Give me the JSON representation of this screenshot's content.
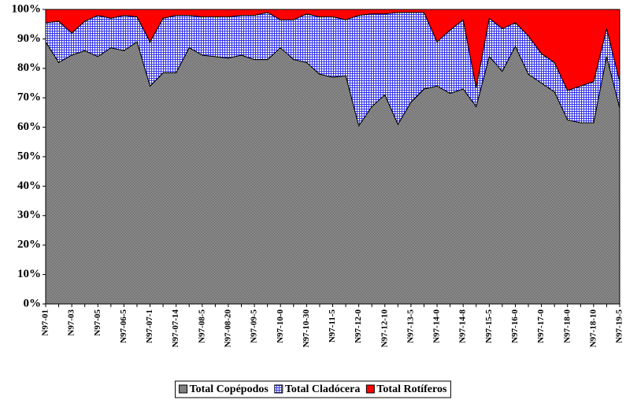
{
  "chart_data": {
    "type": "stacked_area",
    "categories": [
      "N97-01",
      null,
      "N97-03",
      null,
      "N97-05",
      null,
      "N97-06-5",
      null,
      "N97-07-1",
      null,
      "N97-07-14",
      null,
      "N97-08-5",
      null,
      "N97-08-20",
      null,
      "N97-09-5",
      null,
      "N97-10-0",
      null,
      "N97-10-30",
      null,
      "N97-11-5",
      null,
      "N97-12-0",
      null,
      "N97-12-10",
      null,
      "N97-13-5",
      null,
      "N97-14-0",
      null,
      "N97-14-8",
      null,
      "N97-15-5",
      null,
      "N97-16-0",
      null,
      "N97-17-0",
      null,
      "N97-18-0",
      null,
      "N97-18-10",
      null,
      "N97-19-5"
    ],
    "series": [
      {
        "name": "Total Copépodos",
        "color": "#808080",
        "values": [
          89,
          82,
          84.5,
          86,
          84,
          87,
          86,
          89,
          74,
          78.5,
          78.5,
          87,
          84.5,
          84,
          83.5,
          84.5,
          83,
          83,
          87,
          83,
          82,
          78,
          77,
          77.5,
          60.5,
          67,
          71,
          61,
          68.5,
          73,
          74,
          71.5,
          73,
          67,
          84,
          79,
          87.5,
          78,
          75,
          72,
          62.5,
          61.5,
          61.5,
          84,
          66.5
        ]
      },
      {
        "name": "Total Cladócera",
        "color": "#5555ff",
        "values": [
          6.5,
          14,
          7.5,
          10,
          14,
          10,
          12,
          8.5,
          15,
          18.5,
          19.5,
          11,
          13,
          13.5,
          14,
          13.5,
          15,
          16,
          9.5,
          13.5,
          16.5,
          19.5,
          20.5,
          19,
          37.5,
          31.5,
          27.5,
          38,
          30.5,
          26,
          15,
          21.5,
          23.5,
          6.5,
          13,
          14.5,
          8,
          13,
          10,
          10,
          10,
          12.5,
          14,
          9.5,
          9
        ]
      },
      {
        "name": "Total Rotíferos",
        "color": "#ff0000",
        "values": [
          4.5,
          4,
          8,
          4,
          2,
          3,
          2,
          2.5,
          11,
          3,
          2,
          2,
          2.5,
          2.5,
          2.5,
          2,
          2,
          1,
          3.5,
          3.5,
          1.5,
          2.5,
          2.5,
          3.5,
          2,
          1.5,
          1.5,
          1,
          1,
          1,
          11,
          7,
          3.5,
          26.5,
          3,
          6.5,
          4.5,
          9,
          15,
          18,
          27.5,
          26,
          24.5,
          6.5,
          24.5
        ]
      }
    ],
    "ylim": [
      0,
      100
    ],
    "yticks": [
      {
        "value": 0,
        "label": "0%"
      },
      {
        "value": 10,
        "label": "10%"
      },
      {
        "value": 20,
        "label": "20%"
      },
      {
        "value": 30,
        "label": "30%"
      },
      {
        "value": 40,
        "label": "40%"
      },
      {
        "value": 50,
        "label": "50%"
      },
      {
        "value": 60,
        "label": "60%"
      },
      {
        "value": 70,
        "label": "70%"
      },
      {
        "value": 80,
        "label": "80%"
      },
      {
        "value": 90,
        "label": "90%"
      },
      {
        "value": 100,
        "label": "100%"
      }
    ],
    "legend": "bottom"
  }
}
